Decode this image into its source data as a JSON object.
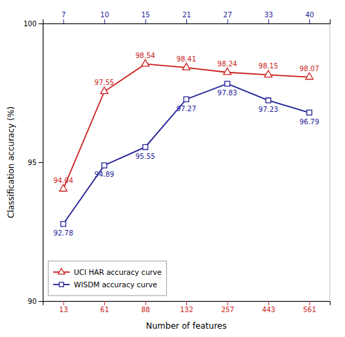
{
  "chart_data": {
    "type": "line",
    "xlabel": "Number of features",
    "ylabel": "Classification accuracy (%)",
    "categories": [
      "13",
      "61",
      "88",
      "132",
      "257",
      "443",
      "561"
    ],
    "x2_categories": [
      "7",
      "10",
      "15",
      "21",
      "27",
      "33",
      "40"
    ],
    "series": [
      {
        "name": "UCI HAR accuracy curve",
        "color": "#cc2222",
        "marker": "triangle",
        "values": [
          94.04,
          97.55,
          98.54,
          98.41,
          98.24,
          98.15,
          98.07
        ]
      },
      {
        "name": "WISDM accuracy curve",
        "color": "#222299",
        "marker": "square",
        "values": [
          92.78,
          94.89,
          95.55,
          97.27,
          97.83,
          97.23,
          96.79
        ]
      }
    ],
    "ylim": [
      90,
      100
    ],
    "yticks": [
      90,
      95,
      100
    ],
    "data_labels": true,
    "grid": false,
    "legend": "lower left"
  }
}
